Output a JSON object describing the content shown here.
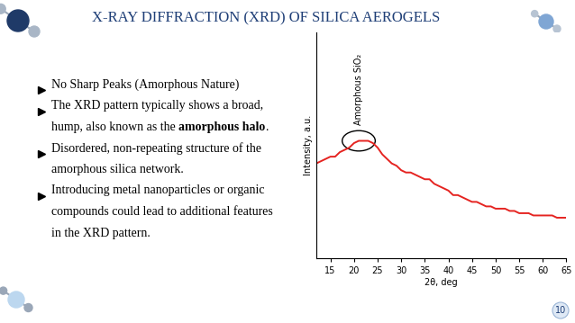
{
  "slide": {
    "title": "X-RAY DIFFRACTION (XRD) OF SILICA AEROGELS",
    "page_number": "10",
    "bullets": [
      {
        "lines": [
          "No Sharp Peaks (Amorphous Nature)"
        ]
      },
      {
        "lines": [
          "The XRD pattern typically shows a broad,",
          "hump, also known as the amorphous halo."
        ],
        "bold": "amorphous halo"
      },
      {
        "lines": [
          "Disordered, non-repeating structure of the",
          "amorphous silica network."
        ]
      },
      {
        "lines": [
          "Introducing metal nanoparticles or organic",
          "compounds could lead to additional features",
          "in the XRD pattern."
        ]
      }
    ]
  },
  "chart_data": {
    "type": "line",
    "xlabel": "2θ, deg",
    "ylabel": "Intensity, a.u.",
    "annotation": "Amorphous SiO₂",
    "x": [
      12,
      13,
      14,
      15,
      16,
      17,
      18,
      19,
      20,
      21,
      22,
      23,
      24,
      25,
      26,
      27,
      28,
      29,
      30,
      31,
      32,
      33,
      34,
      35,
      36,
      37,
      38,
      39,
      40,
      41,
      42,
      43,
      44,
      45,
      46,
      47,
      48,
      49,
      50,
      51,
      52,
      53,
      54,
      55,
      56,
      57,
      58,
      59,
      60,
      61,
      62,
      63,
      64,
      65
    ],
    "values": [
      0.42,
      0.43,
      0.44,
      0.45,
      0.45,
      0.47,
      0.48,
      0.49,
      0.51,
      0.52,
      0.52,
      0.52,
      0.51,
      0.49,
      0.46,
      0.44,
      0.42,
      0.41,
      0.39,
      0.38,
      0.38,
      0.37,
      0.36,
      0.35,
      0.35,
      0.33,
      0.32,
      0.31,
      0.3,
      0.28,
      0.28,
      0.27,
      0.26,
      0.25,
      0.25,
      0.24,
      0.23,
      0.23,
      0.22,
      0.22,
      0.22,
      0.21,
      0.21,
      0.2,
      0.2,
      0.2,
      0.19,
      0.19,
      0.19,
      0.19,
      0.19,
      0.18,
      0.18,
      0.18
    ],
    "color": "#e52421",
    "xlim": [
      12,
      65
    ],
    "xticks": [
      15,
      20,
      25,
      30,
      35,
      40,
      45,
      50,
      55,
      60,
      65
    ],
    "ylim": [
      0,
      1
    ],
    "tick_labels": "x"
  }
}
